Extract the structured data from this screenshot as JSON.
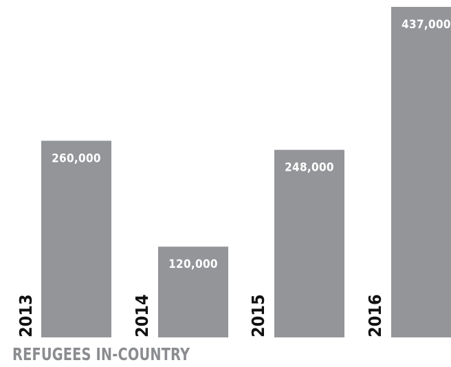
{
  "chart_data": {
    "type": "bar",
    "title": "REFUGEES IN-COUNTRY",
    "categories": [
      "2013",
      "2014",
      "2015",
      "2016"
    ],
    "values": [
      260000,
      120000,
      248000,
      437000
    ],
    "value_labels": [
      "260,000",
      "120,000",
      "248,000",
      "437,000"
    ],
    "ylim": [
      0,
      437000
    ],
    "grid": false,
    "legend": "none",
    "colors": {
      "bar": "#939598",
      "value_text": "#ffffff",
      "category_text": "#111111",
      "title": "#8a8c8f"
    }
  }
}
